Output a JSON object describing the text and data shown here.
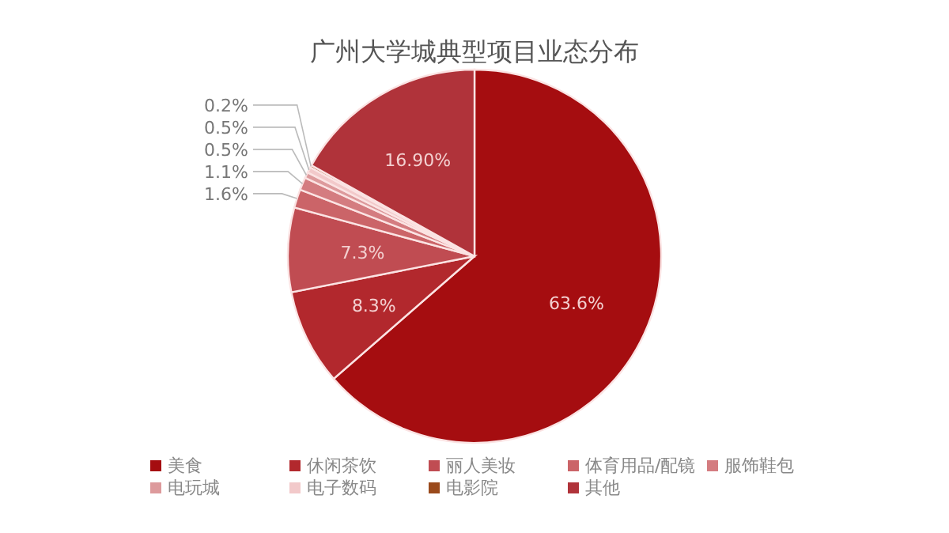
{
  "chart_data": {
    "type": "pie",
    "title": "广州大学城典型项目业态分布",
    "categories": [
      "美食",
      "休闲茶饮",
      "丽人美妆",
      "体育用品/配镜",
      "服饰鞋包",
      "电玩城",
      "电子数码",
      "电影院",
      "其他"
    ],
    "values": [
      63.6,
      8.3,
      7.3,
      1.6,
      1.1,
      0.5,
      0.5,
      0.2,
      16.9
    ],
    "colors": [
      "#a50d10",
      "#b2282d",
      "#c04c52",
      "#cb6468",
      "#d47c80",
      "#dd9a9c",
      "#f2c9ca",
      "#9a4a1c",
      "#b0333a"
    ],
    "value_labels": [
      "63.6%",
      "8.3%",
      "7.3%",
      "1.6%",
      "1.1%",
      "0.5%",
      "0.5%",
      "0.2%",
      "16.90%"
    ],
    "legend": "bottom"
  }
}
